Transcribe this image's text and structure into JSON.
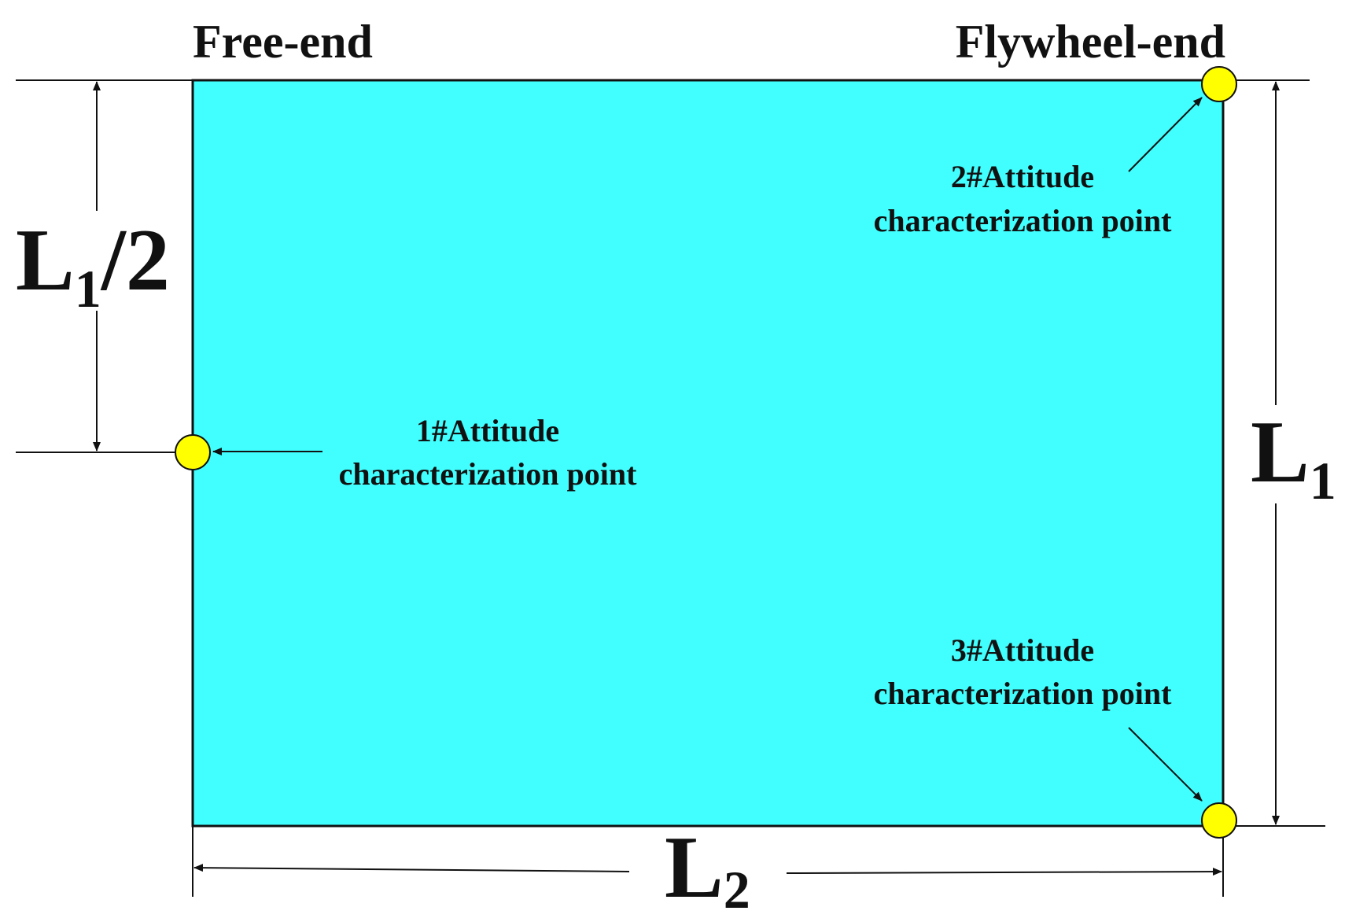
{
  "labels": {
    "free_end": "Free-end",
    "flywheel_end": "Flywheel-end"
  },
  "points": [
    {
      "line1": "1#Attitude",
      "line2": "characterization point"
    },
    {
      "line1": "2#Attitude",
      "line2": "characterization point"
    },
    {
      "line1": "3#Attitude",
      "line2": "characterization point"
    }
  ],
  "dimensions": {
    "half_height": {
      "main": "L",
      "sub": "1",
      "suffix": "/2"
    },
    "height": {
      "main": "L",
      "sub": "1"
    },
    "width": {
      "main": "L",
      "sub": "2"
    }
  },
  "colors": {
    "panel_fill": "#41ffff",
    "point_fill": "#ffff00",
    "line": "#111111"
  }
}
